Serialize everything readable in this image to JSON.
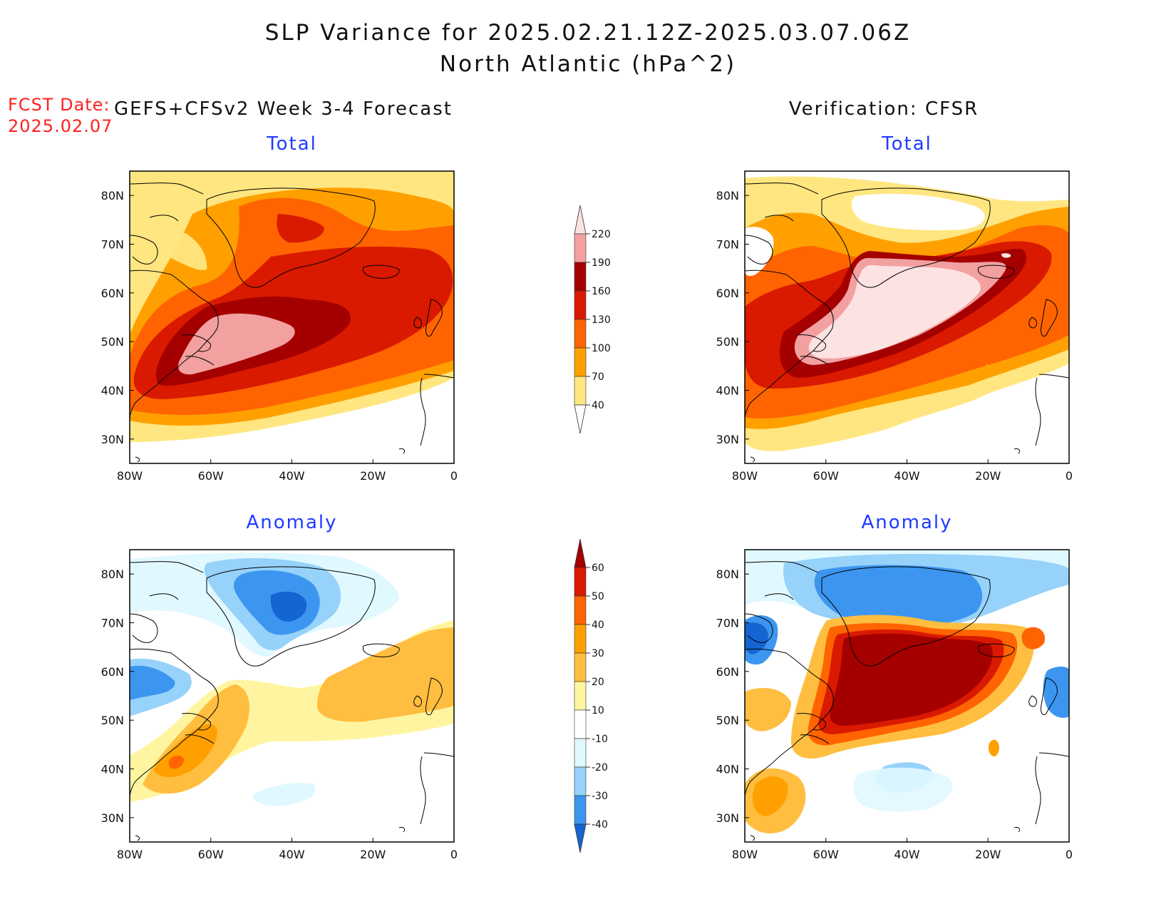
{
  "header": {
    "title_line1": "SLP Variance for 2025.02.21.12Z-2025.03.07.06Z",
    "title_line2": "North Atlantic (hPa^2)",
    "fcst_label": "FCST Date:",
    "fcst_date": "2025.02.07"
  },
  "columns": {
    "left_title": "GEFS+CFSv2 Week 3-4 Forecast",
    "right_title": "Verification: CFSR"
  },
  "panels": {
    "fcst_total_title": "Total",
    "verif_total_title": "Total",
    "fcst_anom_title": "Anomaly",
    "verif_anom_title": "Anomaly"
  },
  "axes": {
    "lat_labels": [
      "80N",
      "70N",
      "60N",
      "50N",
      "40N",
      "30N"
    ],
    "lon_labels": [
      "80W",
      "60W",
      "40W",
      "20W",
      "0"
    ]
  },
  "colorbar_total": {
    "levels": [
      "220",
      "190",
      "160",
      "130",
      "100",
      "70",
      "40"
    ],
    "colors": [
      "#fde2e2",
      "#f2a0a0",
      "#a50000",
      "#d91a00",
      "#ff6400",
      "#ffa000",
      "#ffe680"
    ]
  },
  "colorbar_anomaly": {
    "levels": [
      "60",
      "50",
      "40",
      "30",
      "20",
      "10",
      "-10",
      "-20",
      "-30",
      "-40"
    ],
    "colors": [
      "#a50000",
      "#d91a00",
      "#ff6400",
      "#ffa000",
      "#ffbe40",
      "#fff5a0",
      "#ffffff",
      "#e0f8ff",
      "#96d2fa",
      "#3c96f0",
      "#1464d2"
    ]
  }
}
